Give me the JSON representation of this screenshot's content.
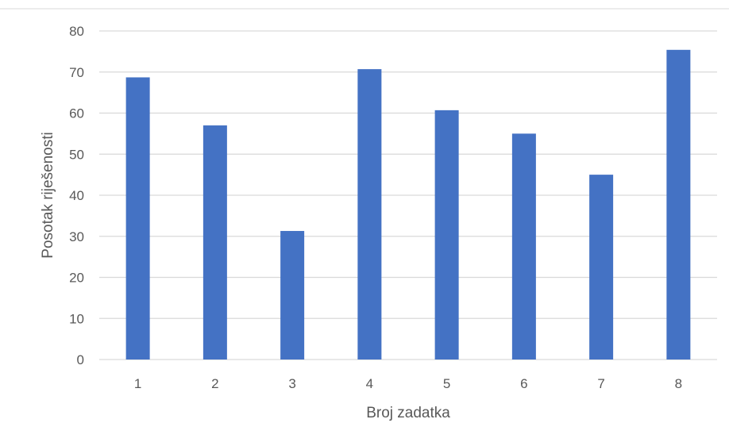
{
  "chart_data": {
    "type": "bar",
    "categories": [
      "1",
      "2",
      "3",
      "4",
      "5",
      "6",
      "7",
      "8"
    ],
    "series": [
      {
        "values": [
          68.7,
          57.0,
          31.3,
          70.7,
          60.7,
          55.0,
          45.0,
          75.4
        ],
        "color": "#4472C4"
      }
    ],
    "title": "",
    "xlabel": "Broj zadatka",
    "ylabel": "Posotak riješenosti",
    "ylim": [
      0,
      80
    ],
    "yticks": [
      "0",
      "10",
      "20",
      "30",
      "40",
      "50",
      "60",
      "70",
      "80"
    ],
    "grid": true,
    "legend": "none",
    "colors": {
      "bar": "#4472C4",
      "grid": "#D9D9D9",
      "text": "#595959",
      "frame": "#D9D9D9"
    }
  }
}
